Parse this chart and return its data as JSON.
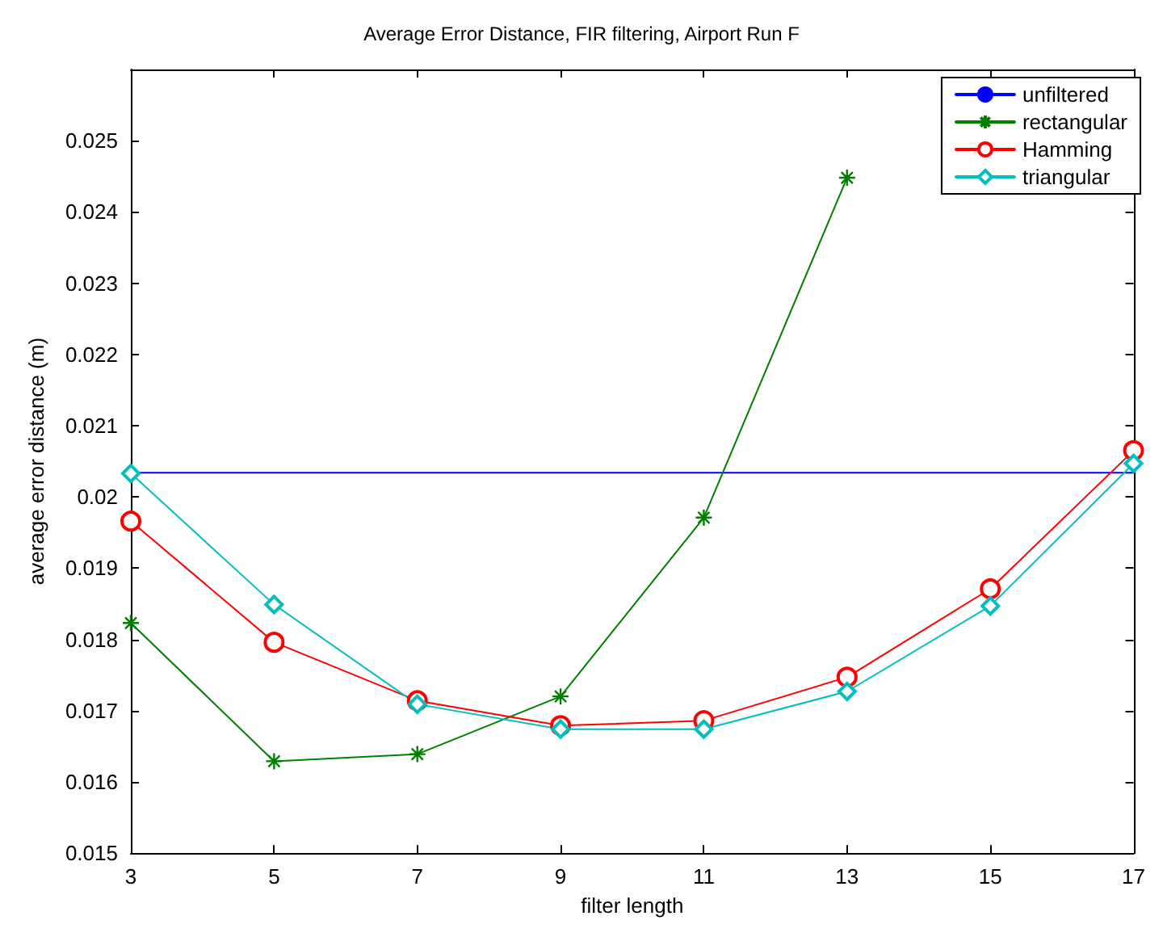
{
  "chart_data": {
    "type": "line",
    "title": "Average Error Distance, FIR filtering, Airport Run F",
    "xlabel": "filter length",
    "ylabel": "average error distance (m)",
    "x": [
      3,
      5,
      7,
      9,
      11,
      13,
      15,
      17
    ],
    "series": [
      {
        "name": "unfiltered",
        "color": "#0000ff",
        "marker": "none",
        "values": [
          0.02034,
          0.02034,
          0.02034,
          0.02034,
          0.02034,
          0.02034,
          0.02034,
          0.02034
        ]
      },
      {
        "name": "rectangular",
        "color": "#008000",
        "marker": "cross",
        "values": [
          0.01823,
          0.01629,
          0.01639,
          0.0172,
          0.01971,
          0.02448,
          null,
          null
        ]
      },
      {
        "name": "Hamming",
        "color": "#ff0000",
        "marker": "circle",
        "values": [
          0.01966,
          0.01796,
          0.01714,
          0.01679,
          0.01686,
          0.01747,
          0.01871,
          0.02065
        ]
      },
      {
        "name": "triangular",
        "color": "#00bfbf",
        "marker": "diamond",
        "values": [
          0.02033,
          0.01849,
          0.01709,
          0.01674,
          0.01674,
          0.01727,
          0.01847,
          0.02047
        ]
      }
    ],
    "xlim": [
      3,
      17
    ],
    "xticks": [
      3,
      5,
      7,
      9,
      11,
      13,
      15,
      17
    ],
    "ylim": [
      0.015,
      0.026
    ],
    "yticks": [
      0.015,
      0.016,
      0.017,
      0.018,
      0.019,
      0.02,
      0.021,
      0.022,
      0.023,
      0.024,
      0.025
    ],
    "grid": false,
    "legend": "top right",
    "line_style": "solid"
  }
}
